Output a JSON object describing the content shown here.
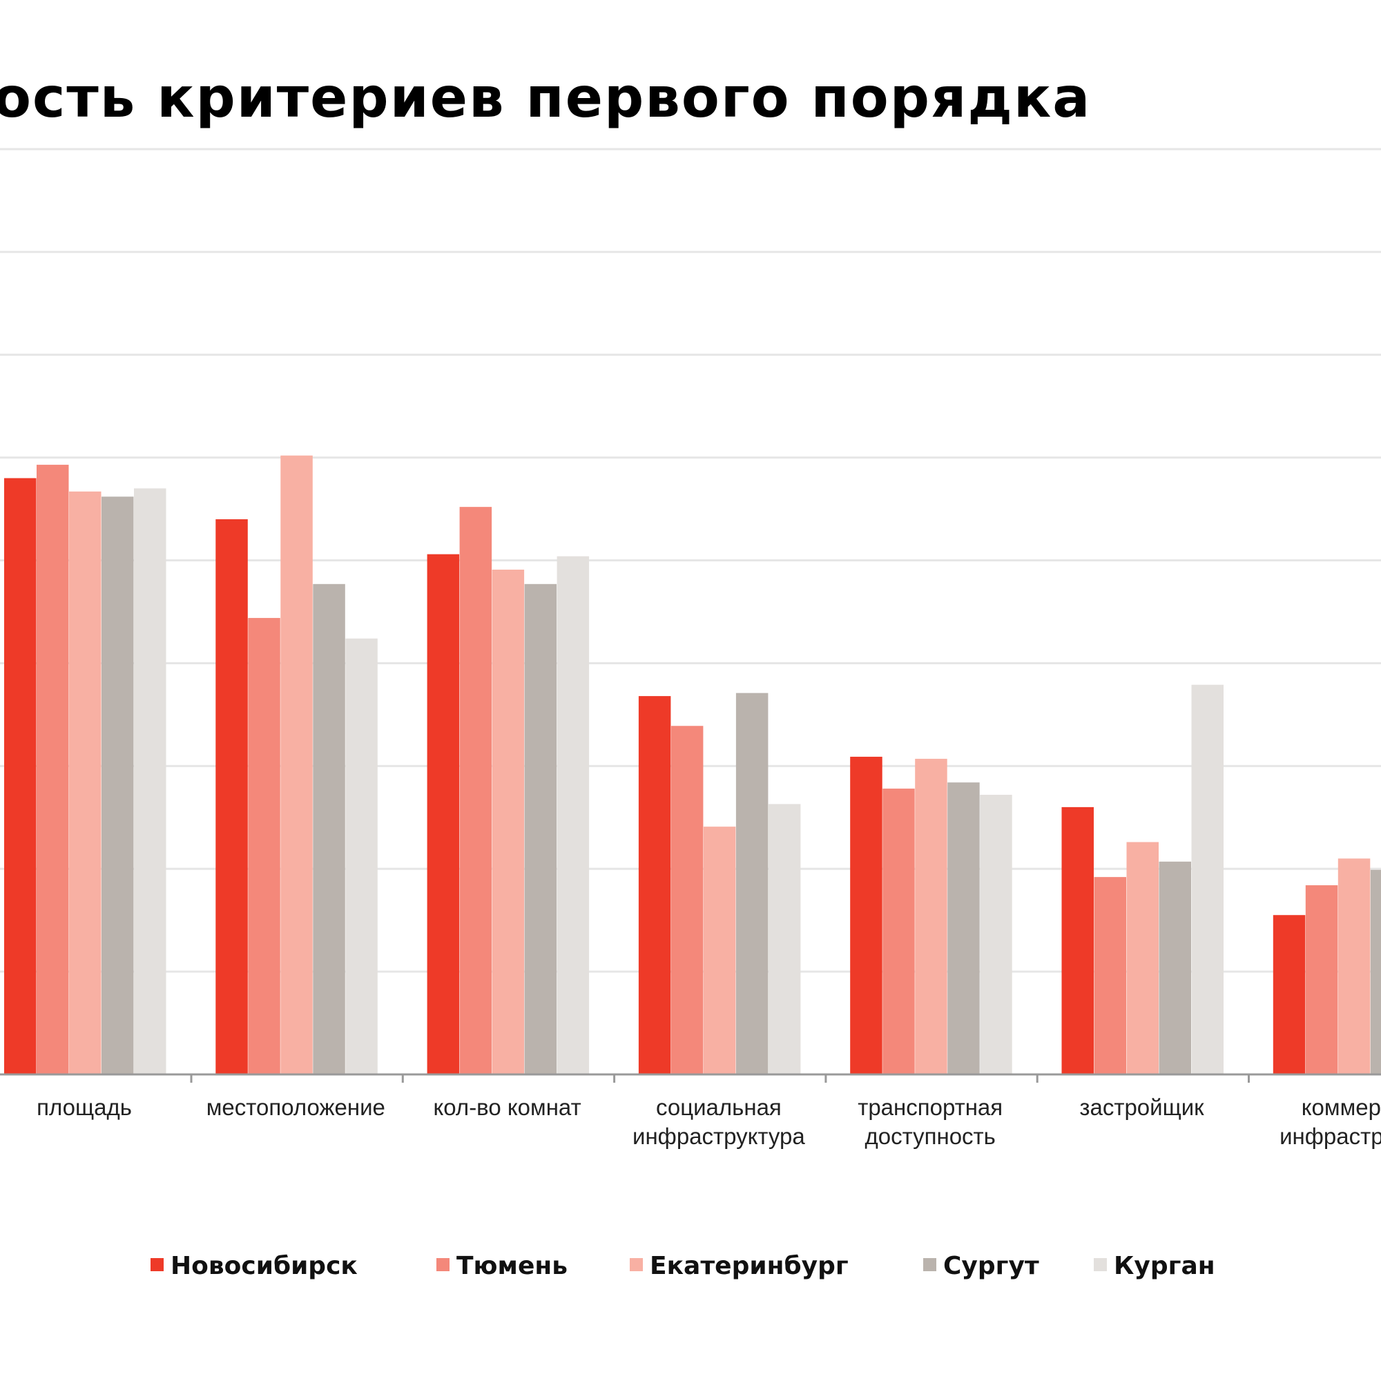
{
  "chart_data": {
    "type": "bar",
    "title": "ость критериев первого порядка",
    "xlabel": "",
    "ylabel": "",
    "ylim": [
      0,
      9
    ],
    "grid": true,
    "legend_position": "bottom",
    "categories": [
      [
        "площадь"
      ],
      [
        "местоположение"
      ],
      [
        "кол-во комнат"
      ],
      [
        "социальная",
        "инфраструктура"
      ],
      [
        "транспортная",
        "доступность"
      ],
      [
        "застройщик"
      ],
      [
        "коммерче",
        "инфраструкту"
      ]
    ],
    "series": [
      {
        "name": "Новосибирск",
        "color": "#ee3a28",
        "values": [
          5.8,
          5.4,
          5.06,
          3.68,
          3.09,
          2.6,
          1.55
        ]
      },
      {
        "name": "Тюмень",
        "color": "#f4887a",
        "values": [
          5.93,
          4.44,
          5.52,
          3.39,
          2.78,
          1.92,
          1.84
        ]
      },
      {
        "name": "Екатеринбург",
        "color": "#f8b0a3",
        "values": [
          5.67,
          6.02,
          4.91,
          2.41,
          3.07,
          2.26,
          2.1
        ]
      },
      {
        "name": "Сургут",
        "color": "#bab3ad",
        "values": [
          5.62,
          4.77,
          4.77,
          3.71,
          2.84,
          2.07,
          1.99
        ]
      },
      {
        "name": "Курган",
        "color": "#e3e0dd",
        "values": [
          5.7,
          4.24,
          5.04,
          2.63,
          2.72,
          3.79,
          null
        ]
      }
    ]
  }
}
